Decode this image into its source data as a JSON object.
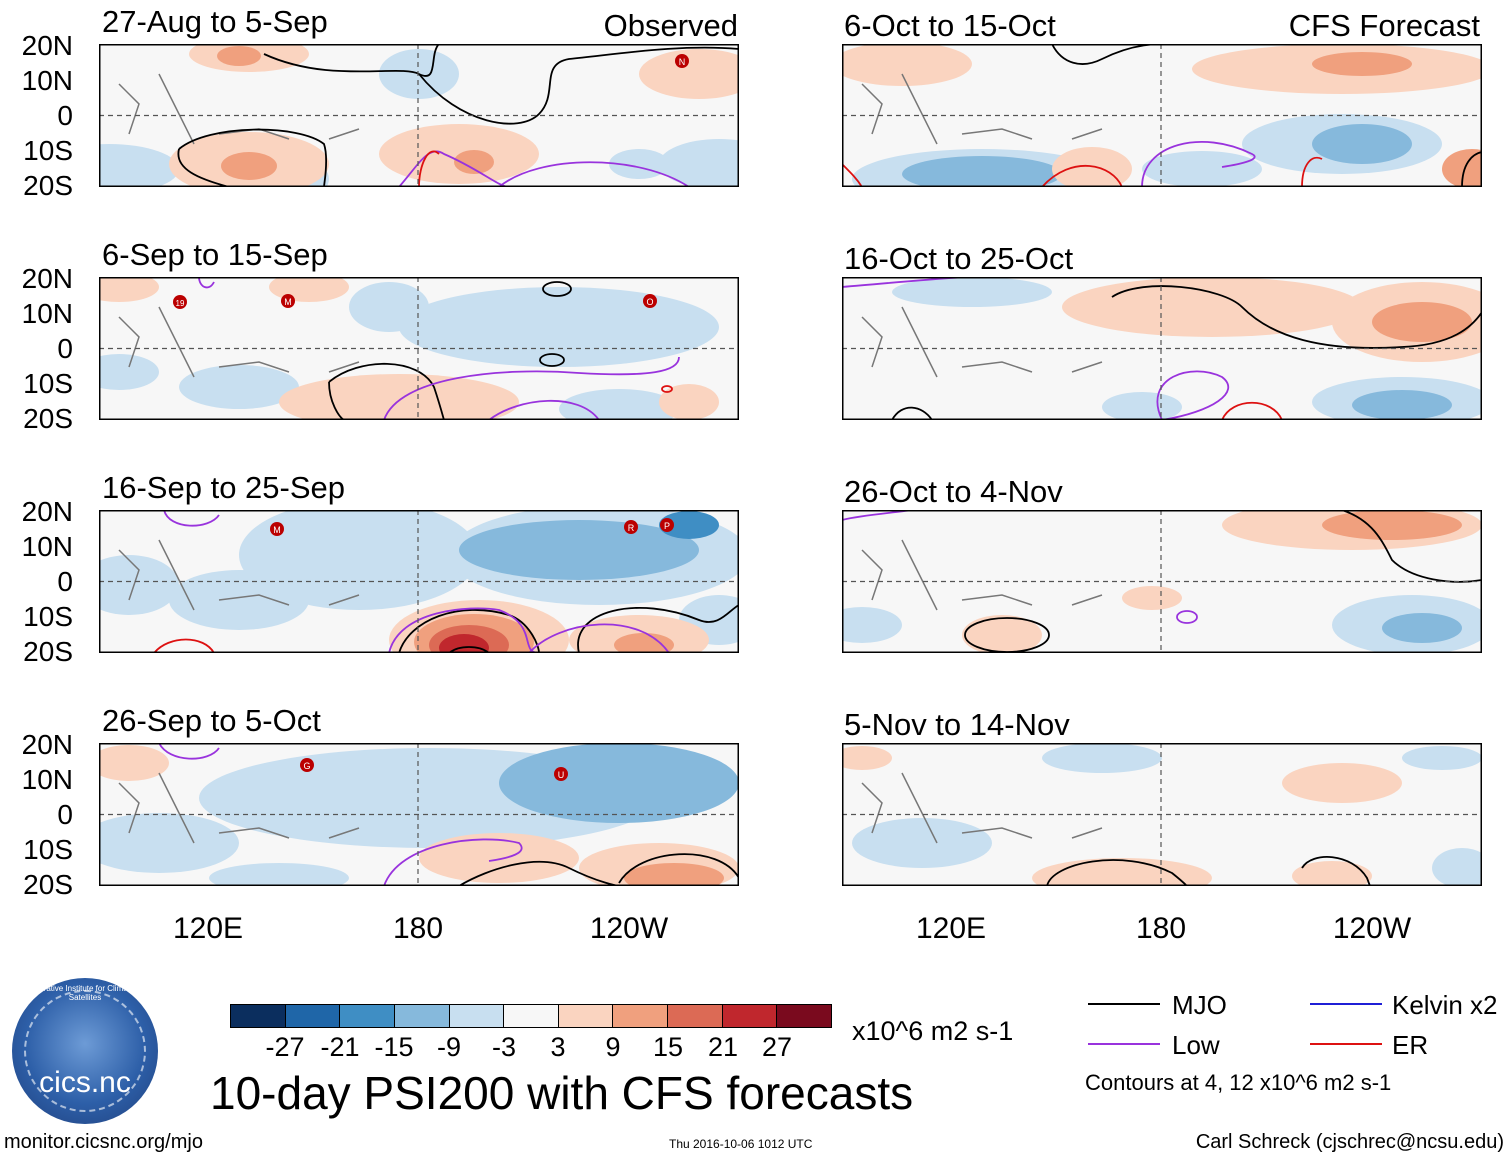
{
  "panels": [
    {
      "title": "27-Aug to 5-Sep",
      "tag": "Observed"
    },
    {
      "title": "6-Sep to 15-Sep",
      "tag": ""
    },
    {
      "title": "16-Sep to 25-Sep",
      "tag": ""
    },
    {
      "title": "26-Sep to 5-Oct",
      "tag": ""
    },
    {
      "title": "6-Oct to 15-Oct",
      "tag": "CFS Forecast"
    },
    {
      "title": "16-Oct to 25-Oct",
      "tag": ""
    },
    {
      "title": "26-Oct to 4-Nov",
      "tag": ""
    },
    {
      "title": "5-Nov to 14-Nov",
      "tag": ""
    }
  ],
  "lat_labels": [
    "20N",
    "10N",
    "0",
    "10S",
    "20S"
  ],
  "lon_labels": [
    "120E",
    "180",
    "120W"
  ],
  "storms": [
    {
      "panel": 0,
      "code": "N"
    },
    {
      "panel": 1,
      "code": "19"
    },
    {
      "panel": 1,
      "code": "M"
    },
    {
      "panel": 1,
      "code": "O"
    },
    {
      "panel": 2,
      "code": "M"
    },
    {
      "panel": 2,
      "code": "R"
    },
    {
      "panel": 2,
      "code": "P"
    },
    {
      "panel": 3,
      "code": "G"
    },
    {
      "panel": 3,
      "code": "U"
    }
  ],
  "colorbar": {
    "colors": [
      "#0b2e5e",
      "#1f66a8",
      "#3f8ec4",
      "#86b9dc",
      "#c8dff0",
      "#f7f7f7",
      "#fad4c0",
      "#f0a07e",
      "#dc6a55",
      "#c0272d",
      "#7a0a1e"
    ],
    "ticks": [
      "-27",
      "-21",
      "-15",
      "-9",
      "-3",
      "3",
      "9",
      "15",
      "21",
      "27"
    ],
    "units": "x10^6 m2 s-1"
  },
  "title": "10-day PSI200 with CFS forecasts",
  "legend": [
    {
      "label": "MJO",
      "color": "#000000"
    },
    {
      "label": "Kelvin x2",
      "color": "#1f1fd6"
    },
    {
      "label": "Low",
      "color": "#9933dd"
    },
    {
      "label": "ER",
      "color": "#dd1111"
    }
  ],
  "contours_note": "Contours at 4, 12 x10^6 m2 s-1",
  "logo": {
    "name": "cics.nc",
    "arc_text": "Cooperative Institute for Climate and Satellites"
  },
  "footer": {
    "url": "monitor.cicsnc.org/mjo",
    "timestamp": "Thu 2016-10-06 1012 UTC",
    "credit": "Carl Schreck (cjschrec@ncsu.edu)"
  }
}
